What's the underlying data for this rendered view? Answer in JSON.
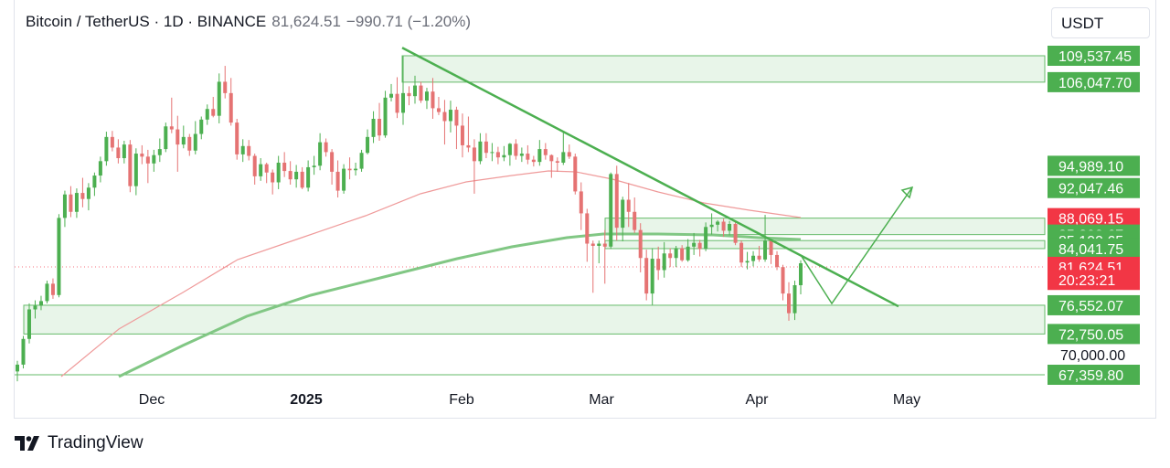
{
  "header": {
    "symbol": "Bitcoin / TetherUS · 1D · BINANCE",
    "price": "81,624.51",
    "change": "−990.71 (−1.20%)"
  },
  "currency": "USDT",
  "footer": {
    "brand": "TradingView"
  },
  "colors": {
    "zone_fill": "#e8f5e9",
    "zone_stroke": "#66bb6a",
    "trendline": "#4caf50",
    "ma_long": "#81c784",
    "ma_short": "#ef9a9a",
    "up_candle": "#4caf50",
    "down_candle": "#e57373",
    "label_green": "#4caf50",
    "label_red": "#f23645"
  },
  "chart_data": {
    "type": "candlestick",
    "title": "Bitcoin / TetherUS · 1D · BINANCE",
    "x_ticks": [
      "Dec",
      "2025",
      "Feb",
      "Mar",
      "Apr",
      "May"
    ],
    "ylim": [
      66000,
      113000
    ],
    "price_labels": [
      {
        "value": 109537.45,
        "text": "109,537.45",
        "color": "green"
      },
      {
        "value": 106047.7,
        "text": "106,047.70",
        "color": "green"
      },
      {
        "value": 94989.1,
        "text": "94,989.10",
        "color": "green"
      },
      {
        "value": 92047.46,
        "text": "92,047.46",
        "color": "green"
      },
      {
        "value": 88069.15,
        "text": "88,069.15",
        "color": "red"
      },
      {
        "value": 85893.67,
        "text": "85,893.67",
        "color": "green"
      },
      {
        "value": 85100.65,
        "text": "85,100.65",
        "color": "green"
      },
      {
        "value": 84041.75,
        "text": "84,041.75",
        "color": "green"
      },
      {
        "value": 81624.51,
        "text": "81,624.51",
        "color": "red"
      },
      {
        "value": 79900,
        "text": "20:23:21",
        "color": "red"
      },
      {
        "value": 76552.07,
        "text": "76,552.07",
        "color": "green"
      },
      {
        "value": 72750.05,
        "text": "72,750.05",
        "color": "green"
      },
      {
        "value": 70000,
        "text": "70,000.00",
        "color": "plain"
      },
      {
        "value": 67359.8,
        "text": "67,359.80",
        "color": "green"
      }
    ],
    "zones": [
      {
        "low": 106047.7,
        "high": 109537.45
      },
      {
        "low": 85893.67,
        "high": 88069.15
      },
      {
        "low": 84041.75,
        "high": 85100.65
      },
      {
        "low": 72750.05,
        "high": 76552.07
      }
    ],
    "candles": [
      [
        67800,
        69200,
        66500,
        68700
      ],
      [
        68700,
        72500,
        68200,
        72100
      ],
      [
        72100,
        76800,
        71500,
        76000
      ],
      [
        76000,
        77200,
        74800,
        76500
      ],
      [
        76500,
        77800,
        75900,
        77100
      ],
      [
        77100,
        79800,
        76800,
        79400
      ],
      [
        79400,
        80100,
        77400,
        77900
      ],
      [
        77900,
        88600,
        77600,
        88100
      ],
      [
        88100,
        91700,
        86900,
        91200
      ],
      [
        91200,
        92300,
        88200,
        88900
      ],
      [
        88900,
        92000,
        88100,
        91400
      ],
      [
        91400,
        93400,
        89500,
        90600
      ],
      [
        90600,
        92700,
        89100,
        92100
      ],
      [
        92100,
        94100,
        91000,
        93700
      ],
      [
        93700,
        96200,
        92800,
        95600
      ],
      [
        95600,
        99500,
        95000,
        98800
      ],
      [
        98800,
        99600,
        96900,
        97400
      ],
      [
        97400,
        98500,
        95300,
        96000
      ],
      [
        96000,
        98300,
        95300,
        97800
      ],
      [
        97800,
        98400,
        91500,
        92300
      ],
      [
        92300,
        97300,
        91100,
        96600
      ],
      [
        96600,
        97700,
        95200,
        96200
      ],
      [
        96200,
        97100,
        92700,
        95300
      ],
      [
        95300,
        97100,
        94200,
        96400
      ],
      [
        96400,
        98600,
        95500,
        97200
      ],
      [
        97200,
        100700,
        96800,
        100200
      ],
      [
        100200,
        104000,
        99300,
        99800
      ],
      [
        99800,
        101600,
        94200,
        97800
      ],
      [
        97800,
        100300,
        97300,
        98800
      ],
      [
        98800,
        99200,
        96300,
        97000
      ],
      [
        97000,
        100900,
        96500,
        99200
      ],
      [
        99200,
        101500,
        98500,
        101100
      ],
      [
        101100,
        103100,
        100400,
        102500
      ],
      [
        102500,
        104100,
        101400,
        101600
      ],
      [
        101600,
        107200,
        100600,
        106100
      ],
      [
        106100,
        108200,
        103900,
        104600
      ],
      [
        104600,
        106600,
        100300,
        100700
      ],
      [
        100700,
        101200,
        95800,
        96500
      ],
      [
        96500,
        98500,
        95500,
        97600
      ],
      [
        97600,
        98400,
        95700,
        96300
      ],
      [
        96300,
        96600,
        92500,
        93600
      ],
      [
        93600,
        96000,
        93000,
        95200
      ],
      [
        95200,
        95400,
        92700,
        94100
      ],
      [
        94100,
        94500,
        91200,
        92800
      ],
      [
        92800,
        96300,
        91900,
        95400
      ],
      [
        95400,
        96800,
        93500,
        94300
      ],
      [
        94300,
        95600,
        92500,
        93200
      ],
      [
        93200,
        95100,
        92100,
        94200
      ],
      [
        94200,
        94800,
        91900,
        92100
      ],
      [
        92100,
        95700,
        91600,
        94800
      ],
      [
        94800,
        96300,
        93800,
        95000
      ],
      [
        95000,
        99300,
        94400,
        98100
      ],
      [
        98100,
        98600,
        96200,
        96800
      ],
      [
        96800,
        97200,
        92500,
        94200
      ],
      [
        94200,
        95700,
        90800,
        91700
      ],
      [
        91700,
        95200,
        91300,
        94600
      ],
      [
        94600,
        96100,
        93200,
        94400
      ],
      [
        94400,
        95400,
        93700,
        94600
      ],
      [
        94600,
        97100,
        94200,
        96700
      ],
      [
        96700,
        99800,
        96500,
        98800
      ],
      [
        98800,
        102200,
        98000,
        101200
      ],
      [
        101200,
        103300,
        98300,
        99000
      ],
      [
        99000,
        104900,
        98700,
        104000
      ],
      [
        104000,
        105800,
        103500,
        104500
      ],
      [
        104500,
        106700,
        101300,
        102000
      ],
      [
        102000,
        109500,
        100400,
        104600
      ],
      [
        104600,
        105500,
        103000,
        104200
      ],
      [
        104200,
        106900,
        103200,
        105600
      ],
      [
        105600,
        106100,
        103300,
        103600
      ],
      [
        103600,
        105300,
        102500,
        104800
      ],
      [
        104800,
        106600,
        101200,
        102600
      ],
      [
        102600,
        104100,
        101700,
        102100
      ],
      [
        102100,
        103700,
        97800,
        100900
      ],
      [
        100900,
        103600,
        99400,
        102400
      ],
      [
        102400,
        102800,
        97200,
        100300
      ],
      [
        100300,
        101900,
        96100,
        97700
      ],
      [
        97700,
        101500,
        96800,
        97400
      ],
      [
        97400,
        98500,
        91300,
        95600
      ],
      [
        95600,
        99300,
        95200,
        98200
      ],
      [
        98200,
        99300,
        96000,
        96700
      ],
      [
        96700,
        98000,
        95600,
        96800
      ],
      [
        96800,
        97500,
        95200,
        96100
      ],
      [
        96100,
        97600,
        95600,
        96400
      ],
      [
        96400,
        98000,
        95000,
        97900
      ],
      [
        97900,
        98500,
        95800,
        96300
      ],
      [
        96300,
        97400,
        95500,
        96600
      ],
      [
        96600,
        97700,
        95200,
        95800
      ],
      [
        95800,
        96300,
        94900,
        95500
      ],
      [
        95500,
        98400,
        95000,
        97200
      ],
      [
        97200,
        98000,
        95800,
        96400
      ],
      [
        96400,
        96500,
        93400,
        95600
      ],
      [
        95600,
        96100,
        94200,
        95400
      ],
      [
        95400,
        99500,
        95100,
        96800
      ],
      [
        96800,
        97800,
        95900,
        96200
      ],
      [
        96200,
        96600,
        91200,
        91600
      ],
      [
        91600,
        92800,
        86500,
        88700
      ],
      [
        88700,
        89300,
        82300,
        84700
      ],
      [
        84700,
        85100,
        78200,
        84400
      ],
      [
        84400,
        85100,
        82100,
        84700
      ],
      [
        84700,
        86500,
        79400,
        84300
      ],
      [
        84300,
        94100,
        84000,
        93900
      ],
      [
        93900,
        95000,
        85100,
        86800
      ],
      [
        86800,
        90900,
        85000,
        90500
      ],
      [
        90500,
        92700,
        86900,
        88900
      ],
      [
        88900,
        90800,
        86100,
        86500
      ],
      [
        86500,
        87400,
        80900,
        82800
      ],
      [
        82800,
        83900,
        77200,
        78100
      ],
      [
        78100,
        84100,
        76600,
        82700
      ],
      [
        82700,
        84300,
        79900,
        81200
      ],
      [
        81200,
        84900,
        80200,
        83400
      ],
      [
        83400,
        84100,
        81600,
        82800
      ],
      [
        82800,
        84400,
        81600,
        84100
      ],
      [
        84100,
        84500,
        82300,
        82500
      ],
      [
        82500,
        85300,
        82300,
        84300
      ],
      [
        84300,
        86100,
        83200,
        84800
      ],
      [
        84800,
        85200,
        83000,
        84000
      ],
      [
        84000,
        87500,
        83700,
        86900
      ],
      [
        86900,
        88700,
        85900,
        87200
      ],
      [
        87200,
        87800,
        86300,
        87600
      ],
      [
        87600,
        88000,
        85600,
        86400
      ],
      [
        86400,
        87700,
        85800,
        87300
      ],
      [
        87300,
        87500,
        84500,
        84800
      ],
      [
        84800,
        85100,
        81600,
        82200
      ],
      [
        82200,
        83600,
        81300,
        82400
      ],
      [
        82400,
        83700,
        81700,
        83100
      ],
      [
        83100,
        84400,
        82300,
        82600
      ],
      [
        82600,
        88500,
        82300,
        85100
      ],
      [
        85100,
        85300,
        82000,
        83200
      ],
      [
        83200,
        83700,
        81200,
        81600
      ],
      [
        81600,
        81900,
        77200,
        78100
      ],
      [
        78100,
        79600,
        74500,
        75500
      ],
      [
        75500,
        79800,
        74600,
        79200
      ],
      [
        79200,
        82500,
        78000,
        82100
      ]
    ],
    "ma_long_path": [
      [
        130,
        412
      ],
      [
        200,
        378
      ],
      [
        270,
        346
      ],
      [
        340,
        323
      ],
      [
        420,
        303
      ],
      [
        500,
        283
      ],
      [
        560,
        270
      ],
      [
        620,
        260
      ],
      [
        660,
        256
      ],
      [
        720,
        256
      ],
      [
        780,
        257
      ],
      [
        830,
        260
      ],
      [
        876,
        262
      ]
    ],
    "ma_short_path": [
      [
        67,
        412
      ],
      [
        130,
        360
      ],
      [
        200,
        320
      ],
      [
        260,
        284
      ],
      [
        330,
        260
      ],
      [
        400,
        236
      ],
      [
        460,
        212
      ],
      [
        510,
        199
      ],
      [
        560,
        192
      ],
      [
        600,
        187
      ],
      [
        630,
        188
      ],
      [
        670,
        196
      ],
      [
        720,
        210
      ],
      [
        770,
        222
      ],
      [
        820,
        230
      ],
      [
        876,
        238
      ]
    ],
    "trendline": {
      "x1": 440,
      "v1": 110600,
      "x2": 983,
      "v2": 76400
    },
    "projection": [
      [
        876,
        279
      ],
      [
        910,
        332
      ],
      [
        998,
        205
      ]
    ]
  }
}
